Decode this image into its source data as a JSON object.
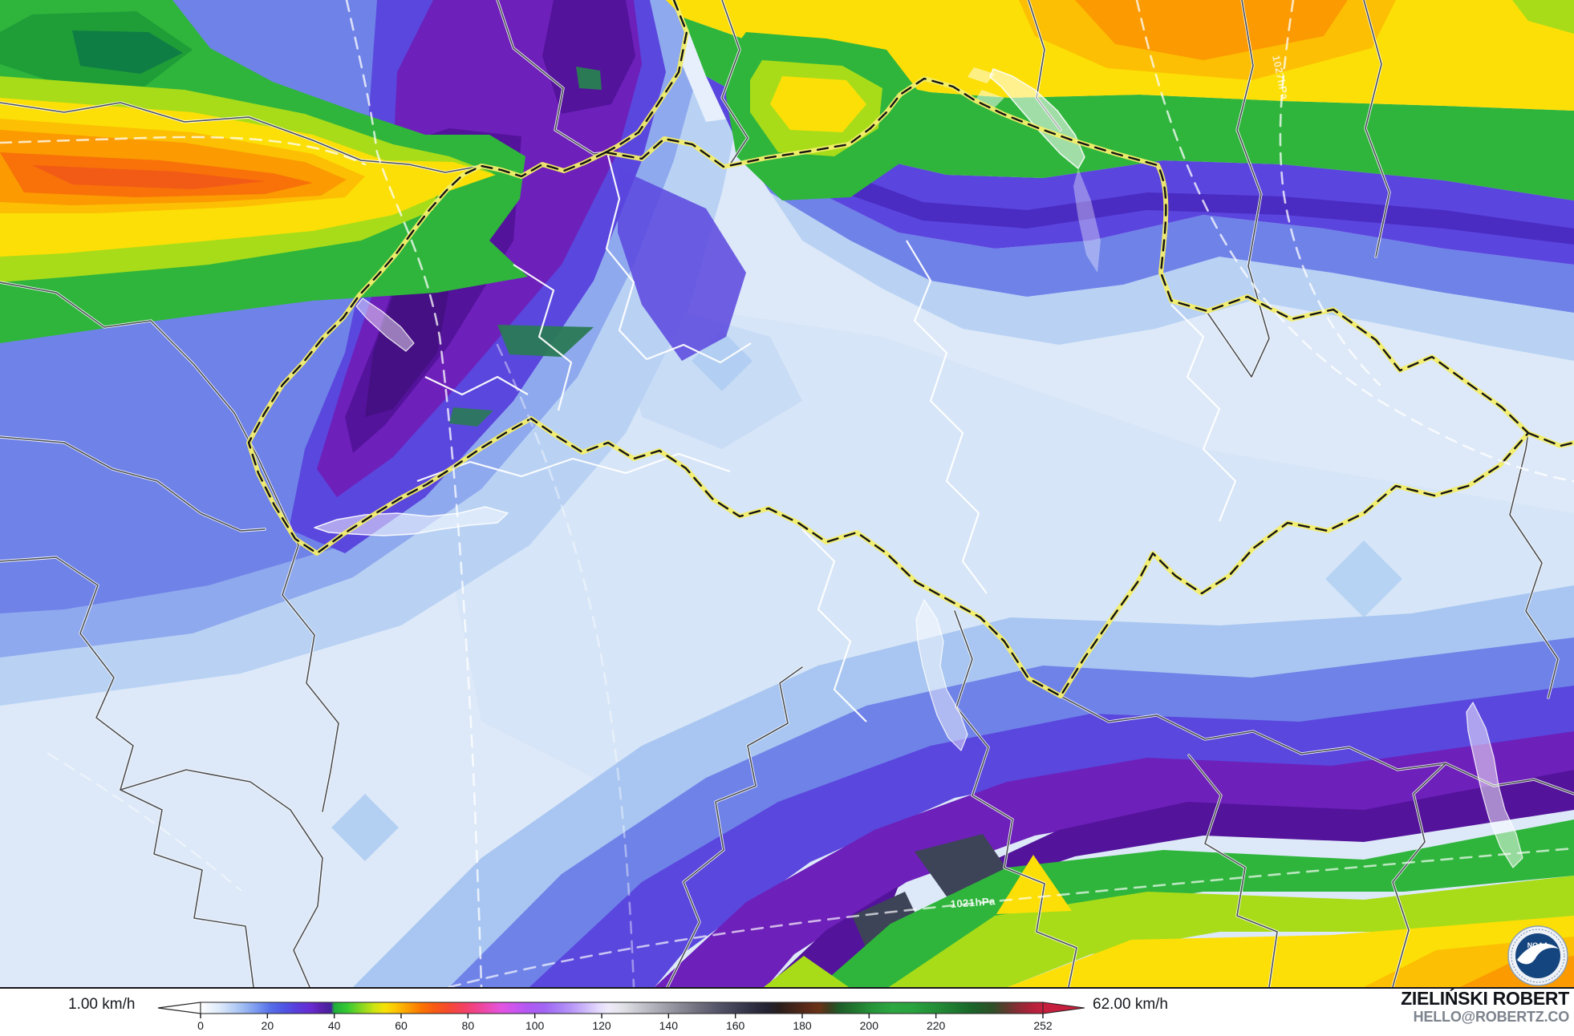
{
  "legend": {
    "min_label": "1.00 km/h",
    "max_label": "62.00 km/h",
    "ticks": [
      0,
      20,
      40,
      60,
      80,
      100,
      120,
      140,
      160,
      180,
      200,
      220,
      252
    ],
    "scale_min": 0,
    "scale_max": 252,
    "gradient_stops": [
      {
        "v": 0,
        "c": "#ffffff"
      },
      {
        "v": 6,
        "c": "#dbe8fa"
      },
      {
        "v": 12,
        "c": "#a6c2f3"
      },
      {
        "v": 17,
        "c": "#7796ef"
      },
      {
        "v": 21,
        "c": "#566ee9"
      },
      {
        "v": 25,
        "c": "#4f55e3"
      },
      {
        "v": 29,
        "c": "#5a3cdc"
      },
      {
        "v": 33,
        "c": "#672bd1"
      },
      {
        "v": 36,
        "c": "#5b21ae"
      },
      {
        "v": 39,
        "c": "#46219b"
      },
      {
        "v": 40,
        "c": "#1fae3c"
      },
      {
        "v": 44,
        "c": "#38c932"
      },
      {
        "v": 48,
        "c": "#85d621"
      },
      {
        "v": 52,
        "c": "#cde313"
      },
      {
        "v": 55,
        "c": "#f5e107"
      },
      {
        "v": 58,
        "c": "#fcc903"
      },
      {
        "v": 62,
        "c": "#fc9f01"
      },
      {
        "v": 66,
        "c": "#fb7501"
      },
      {
        "v": 70,
        "c": "#f85a14"
      },
      {
        "v": 74,
        "c": "#f64a2e"
      },
      {
        "v": 78,
        "c": "#f4425a"
      },
      {
        "v": 82,
        "c": "#f04388"
      },
      {
        "v": 86,
        "c": "#ec4bb4"
      },
      {
        "v": 90,
        "c": "#e354e0"
      },
      {
        "v": 94,
        "c": "#cb55ef"
      },
      {
        "v": 98,
        "c": "#b159f3"
      },
      {
        "v": 103,
        "c": "#a266f4"
      },
      {
        "v": 107,
        "c": "#a97ff6"
      },
      {
        "v": 111,
        "c": "#b897f8"
      },
      {
        "v": 115,
        "c": "#ccb7fa"
      },
      {
        "v": 119,
        "c": "#e3d9fc"
      },
      {
        "v": 122,
        "c": "#efeaf9"
      },
      {
        "v": 126,
        "c": "#e2e2e8"
      },
      {
        "v": 131,
        "c": "#c8c8d0"
      },
      {
        "v": 137,
        "c": "#aaaab4"
      },
      {
        "v": 143,
        "c": "#8c8c98"
      },
      {
        "v": 149,
        "c": "#6e6e7e"
      },
      {
        "v": 155,
        "c": "#545468"
      },
      {
        "v": 161,
        "c": "#3e3e52"
      },
      {
        "v": 166,
        "c": "#2c2c3e"
      },
      {
        "v": 170,
        "c": "#232130"
      },
      {
        "v": 173,
        "c": "#2a1e1c"
      },
      {
        "v": 177,
        "c": "#41241a"
      },
      {
        "v": 181,
        "c": "#582a18"
      },
      {
        "v": 185,
        "c": "#6b3317"
      },
      {
        "v": 188,
        "c": "#3f3d1e"
      },
      {
        "v": 191,
        "c": "#1e5c28"
      },
      {
        "v": 196,
        "c": "#21782f"
      },
      {
        "v": 201,
        "c": "#27953a"
      },
      {
        "v": 207,
        "c": "#2ca741"
      },
      {
        "v": 213,
        "c": "#2aa33e"
      },
      {
        "v": 219,
        "c": "#249138"
      },
      {
        "v": 225,
        "c": "#1f7c31"
      },
      {
        "v": 231,
        "c": "#1a6429"
      },
      {
        "v": 237,
        "c": "#2f4f28"
      },
      {
        "v": 241,
        "c": "#5c3a2e"
      },
      {
        "v": 245,
        "c": "#8f2a34"
      },
      {
        "v": 249,
        "c": "#b4213a"
      },
      {
        "v": 252,
        "c": "#c61f3e"
      }
    ]
  },
  "map": {
    "isobar_labels": [
      "1021hPa",
      "1027hPa"
    ],
    "border_colors": {
      "national_dash": "#111111",
      "national_halo": "#f3ee6a",
      "regional": "#4a4f55",
      "regional_casing": "#ffffff"
    },
    "field_colors": {
      "calm_pale": "#dde9f8",
      "light_blue": "#b9d2f4",
      "blue": "#6f82e8",
      "violet": "#5a47de",
      "purple": "#6e20ba",
      "dark_purple": "#53139b",
      "green": "#2fb53c",
      "yellow_green": "#a8dc19",
      "yellow": "#fcdf06",
      "amber": "#fcbf03",
      "orange": "#fb9a01",
      "deep_orange": "#f87109",
      "red_orange": "#f25b16"
    }
  },
  "logo": {
    "noaa_text": "NOAA"
  },
  "credits": {
    "name": "ZIELIŃSKI ROBERT",
    "email": "HELLO@ROBERTZ.CO"
  }
}
